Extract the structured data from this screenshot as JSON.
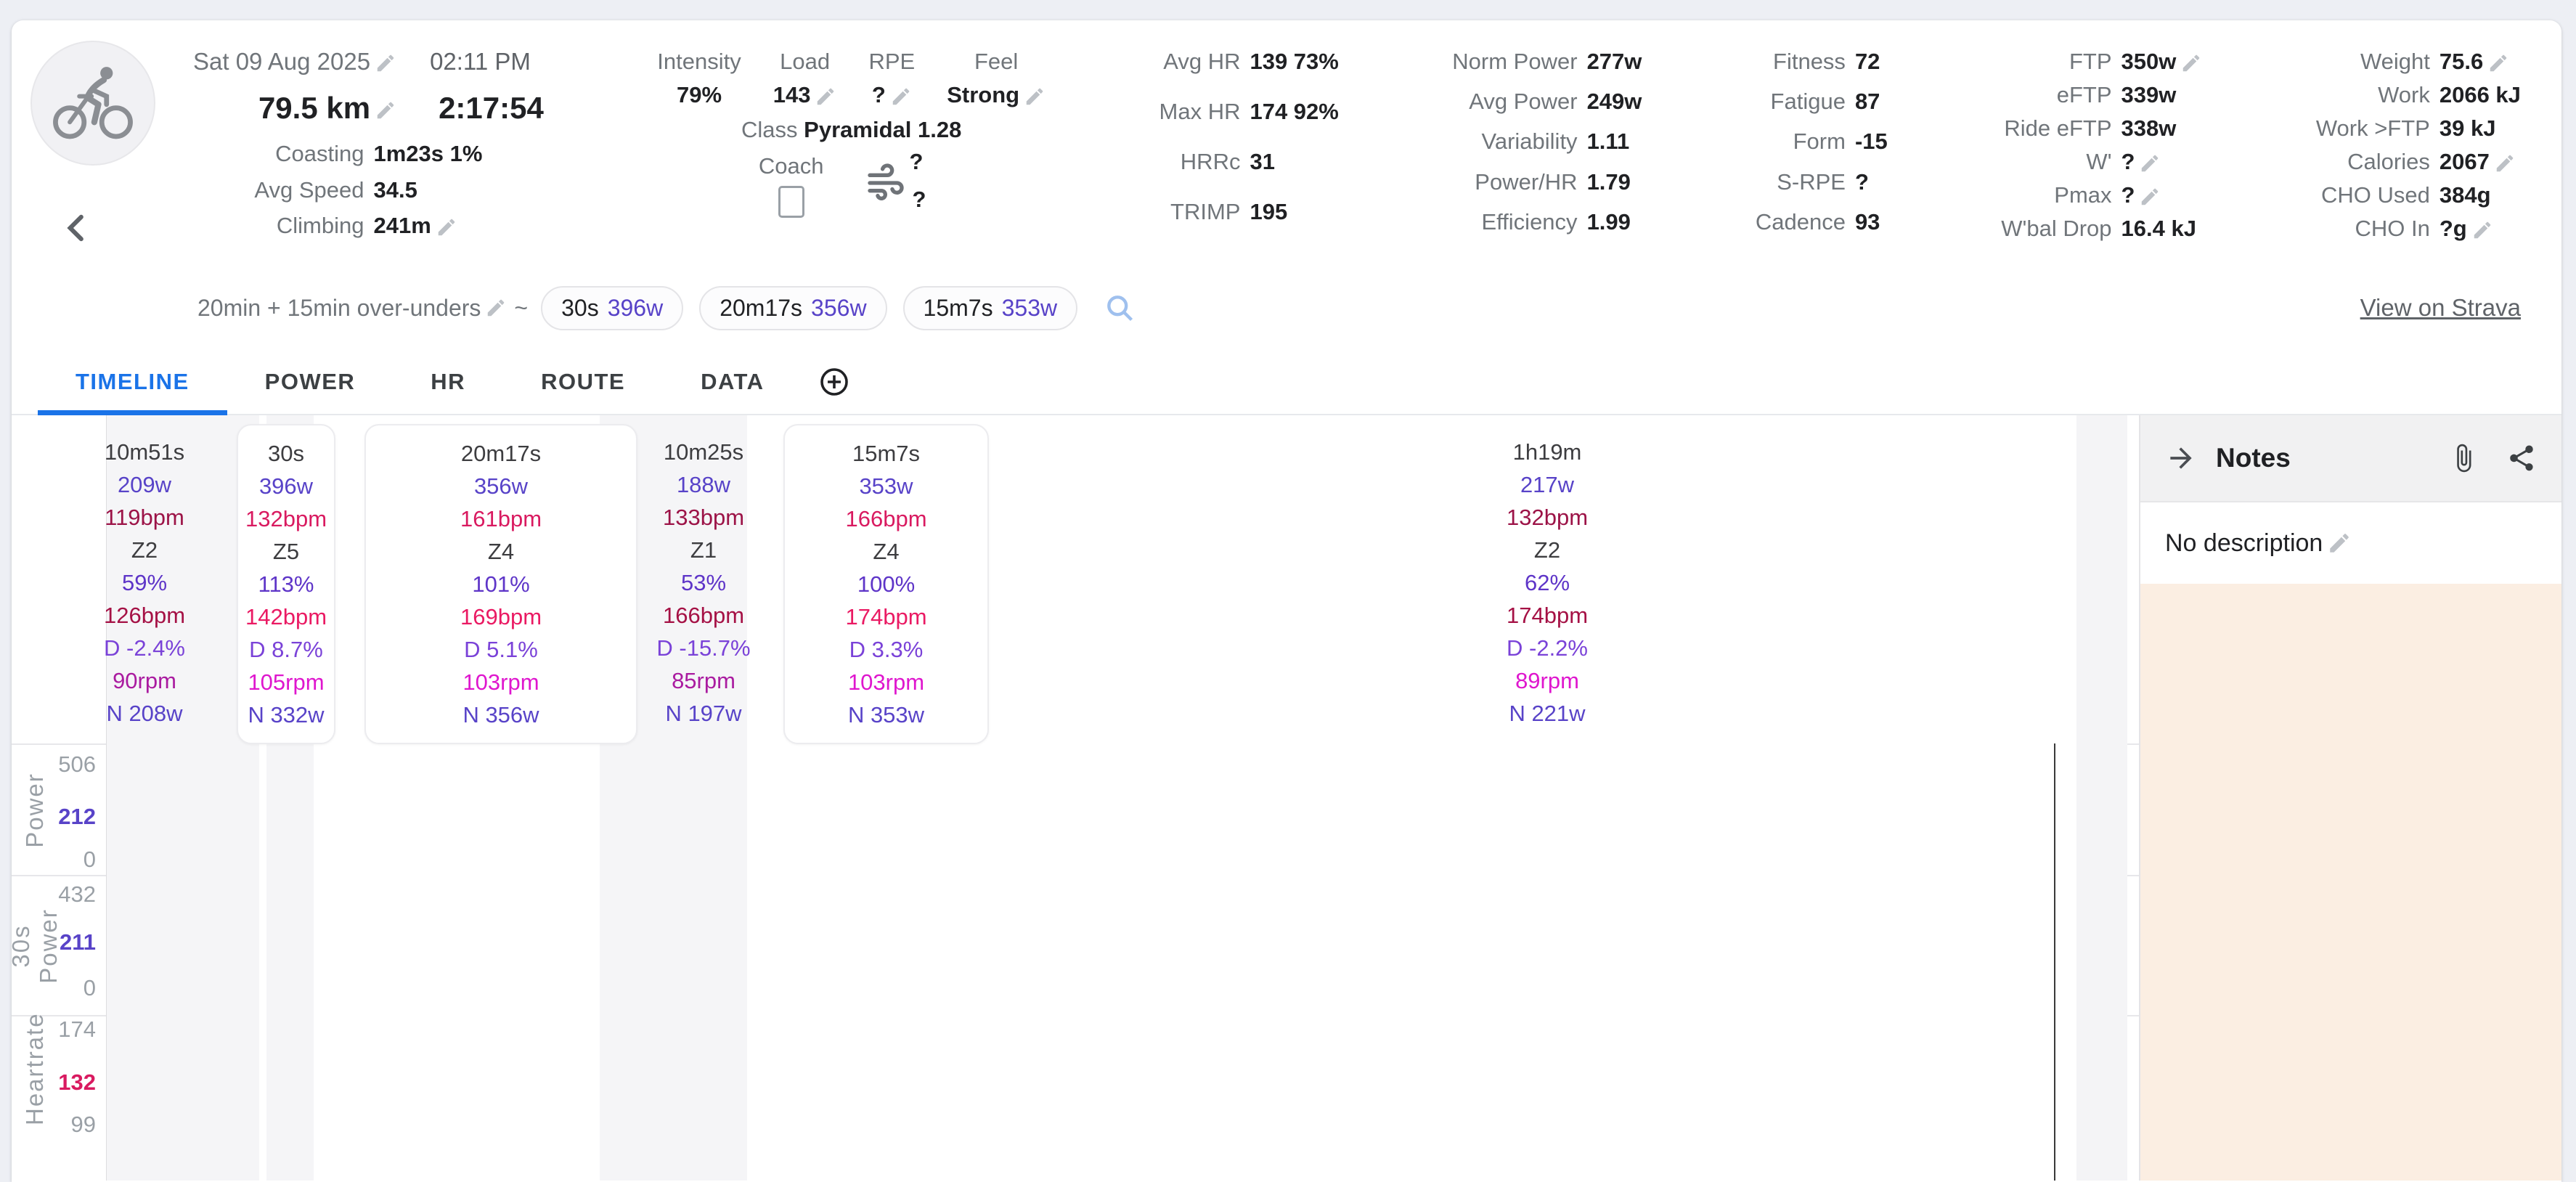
{
  "header": {
    "date": "Sat 09 Aug 2025",
    "start_time": "02:11 PM",
    "distance": "79.5 km",
    "moving_time": "2:17:54",
    "left_rows": [
      {
        "label": "Coasting",
        "value": "1m23s 1%"
      },
      {
        "label": "Avg Speed",
        "value": "34.5"
      },
      {
        "label": "Climbing",
        "value": "241m",
        "pencil": true
      }
    ],
    "effort": {
      "cols": [
        {
          "label": "Intensity",
          "value": "79%"
        },
        {
          "label": "Load",
          "value": "143",
          "pencil": true
        },
        {
          "label": "RPE",
          "value": "?",
          "pencil": true
        },
        {
          "label": "Feel",
          "value": "Strong",
          "pencil": true
        }
      ],
      "class_label": "Class",
      "class_value": "Pyramidal 1.28",
      "coach_label": "Coach",
      "wind_top": "?",
      "wind_bottom": "?"
    },
    "groups": [
      {
        "name": "hr-stats",
        "rows": [
          {
            "label": "Avg HR",
            "value": "139 73%"
          },
          {
            "label": "Max HR",
            "value": "174 92%"
          },
          {
            "label": "HRRc",
            "value": "31"
          },
          {
            "label": "TRIMP",
            "value": "195"
          }
        ]
      },
      {
        "name": "power-stats",
        "rows": [
          {
            "label": "Norm Power",
            "value": "277w"
          },
          {
            "label": "Avg Power",
            "value": "249w"
          },
          {
            "label": "Variability",
            "value": "1.11"
          },
          {
            "label": "Power/HR",
            "value": "1.79"
          },
          {
            "label": "Efficiency",
            "value": "1.99"
          }
        ]
      },
      {
        "name": "fitness-stats",
        "rows": [
          {
            "label": "Fitness",
            "value": "72"
          },
          {
            "label": "Fatigue",
            "value": "87"
          },
          {
            "label": "Form",
            "value": "-15"
          },
          {
            "label": "S-RPE",
            "value": "?"
          },
          {
            "label": "Cadence",
            "value": "93"
          }
        ]
      },
      {
        "name": "ftp-stats",
        "rows": [
          {
            "label": "FTP",
            "value": "350w",
            "pencil": true
          },
          {
            "label": "eFTP",
            "value": "339w"
          },
          {
            "label": "Ride eFTP",
            "value": "338w"
          },
          {
            "label": "W'",
            "value": "?",
            "pencil": true
          },
          {
            "label": "Pmax",
            "value": "?",
            "pencil": true
          },
          {
            "label": "W'bal Drop",
            "value": "16.4 kJ"
          }
        ]
      },
      {
        "name": "energy-stats",
        "rows": [
          {
            "label": "Weight",
            "value": "75.6",
            "pencil": true
          },
          {
            "label": "Work",
            "value": "2066 kJ"
          },
          {
            "label": "Work >FTP",
            "value": "39 kJ"
          },
          {
            "label": "Calories",
            "value": "2067",
            "pencil": true
          },
          {
            "label": "CHO Used",
            "value": "384g"
          },
          {
            "label": "CHO In",
            "value": "?g",
            "pencil": true
          }
        ]
      }
    ]
  },
  "chips": {
    "label": "20min + 15min over-unders",
    "tilde": "~",
    "items": [
      {
        "duration": "30s",
        "power": "396w"
      },
      {
        "duration": "20m17s",
        "power": "356w"
      },
      {
        "duration": "15m7s",
        "power": "353w"
      }
    ],
    "strava_link": "View on Strava"
  },
  "tabs": [
    {
      "label": "TIMELINE",
      "active": true
    },
    {
      "label": "POWER",
      "active": false
    },
    {
      "label": "HR",
      "active": false
    },
    {
      "label": "ROUTE",
      "active": false
    },
    {
      "label": "DATA",
      "active": false
    }
  ],
  "intervals": [
    {
      "duration": "10m51s",
      "power": "209w",
      "avg_hr": "119bpm",
      "zone": "Z2",
      "pct": "59%",
      "max_hr": "126bpm",
      "decoupling": "D -2.4%",
      "cadence": "90rpm",
      "norm": "N 208w",
      "boxed": false,
      "hr_tone": "dark",
      "max_tone": "dark",
      "rpm_tone": "dark"
    },
    {
      "duration": "30s",
      "power": "396w",
      "avg_hr": "132bpm",
      "zone": "Z5",
      "pct": "113%",
      "max_hr": "142bpm",
      "decoupling": "D 8.7%",
      "cadence": "105rpm",
      "norm": "N 332w",
      "boxed": true,
      "hr_tone": "bright",
      "max_tone": "bright",
      "rpm_tone": "bright"
    },
    {
      "duration": "20m17s",
      "power": "356w",
      "avg_hr": "161bpm",
      "zone": "Z4",
      "pct": "101%",
      "max_hr": "169bpm",
      "decoupling": "D 5.1%",
      "cadence": "103rpm",
      "norm": "N 356w",
      "boxed": true,
      "hr_tone": "bright",
      "max_tone": "bright",
      "rpm_tone": "bright"
    },
    {
      "duration": "10m25s",
      "power": "188w",
      "avg_hr": "133bpm",
      "zone": "Z1",
      "pct": "53%",
      "max_hr": "166bpm",
      "decoupling": "D -15.7%",
      "cadence": "85rpm",
      "norm": "N 197w",
      "boxed": false,
      "hr_tone": "dark",
      "max_tone": "dark",
      "rpm_tone": "dark"
    },
    {
      "duration": "15m7s",
      "power": "353w",
      "avg_hr": "166bpm",
      "zone": "Z4",
      "pct": "100%",
      "max_hr": "174bpm",
      "decoupling": "D 3.3%",
      "cadence": "103rpm",
      "norm": "N 353w",
      "boxed": true,
      "hr_tone": "bright",
      "max_tone": "bright",
      "rpm_tone": "bright"
    },
    {
      "duration": "1h19m",
      "power": "217w",
      "avg_hr": "132bpm",
      "zone": "Z2",
      "pct": "62%",
      "max_hr": "174bpm",
      "decoupling": "D -2.2%",
      "cadence": "89rpm",
      "norm": "N 221w",
      "boxed": false,
      "hr_tone": "dark",
      "max_tone": "dark",
      "rpm_tone": "bright"
    }
  ],
  "charts": {
    "panels": [
      {
        "name": "Power",
        "ticks": [
          {
            "t": "506",
            "c": "g"
          },
          {
            "t": "212",
            "c": "p"
          },
          {
            "t": "0",
            "c": "g"
          }
        ]
      },
      {
        "name": "30s Power",
        "ticks": [
          {
            "t": "432",
            "c": "g"
          },
          {
            "t": "211",
            "c": "p"
          },
          {
            "t": "0",
            "c": "g"
          }
        ]
      },
      {
        "name": "Heartrate",
        "ticks": [
          {
            "t": "174",
            "c": "g"
          },
          {
            "t": "132",
            "c": "r"
          },
          {
            "t": "99",
            "c": "g"
          }
        ]
      }
    ]
  },
  "notes": {
    "title": "Notes",
    "empty_text": "No description"
  },
  "chart_data": {
    "type": "line",
    "x_axis": "ride time (2:17:54 total)",
    "panels": [
      "Power (w)",
      "30s Power (w, zone colored)",
      "Heartrate (bpm)"
    ],
    "power_ticks": [
      0,
      212,
      506
    ],
    "power30_ticks": [
      0,
      211,
      432
    ],
    "hr_ticks": [
      99,
      132,
      174
    ],
    "intervals": {
      "durations_s": [
        651,
        30,
        1217,
        625,
        907,
        4740
      ],
      "avg_power_w": [
        209,
        396,
        356,
        188,
        353,
        217
      ],
      "norm_power_w": [
        208,
        332,
        356,
        197,
        353,
        221
      ],
      "avg_hr_bpm": [
        119,
        132,
        161,
        133,
        166,
        132
      ],
      "max_hr_bpm": [
        126,
        142,
        169,
        166,
        174,
        174
      ],
      "cadence_rpm": [
        90,
        105,
        103,
        85,
        103,
        89
      ],
      "zones": [
        "Z2",
        "Z5",
        "Z4",
        "Z1",
        "Z4",
        "Z2"
      ],
      "pct_of_ftp": [
        59,
        113,
        101,
        53,
        100,
        62
      ]
    },
    "legend": "none",
    "grid": "interval boundary vertical bands"
  }
}
